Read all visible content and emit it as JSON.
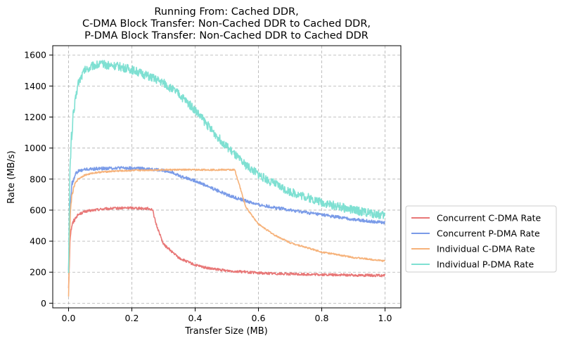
{
  "chart_data": {
    "type": "line",
    "title_lines": [
      "Running From: Cached DDR,",
      "C-DMA Block Transfer: Non-Cached DDR to Cached DDR,",
      "P-DMA Block Transfer: Non-Cached DDR to Cached DDR"
    ],
    "xlabel": "Transfer Size (MB)",
    "ylabel": "Rate (MB/s)",
    "xlim": [
      -0.05,
      1.05
    ],
    "ylim": [
      -30,
      1660
    ],
    "xticks": [
      0.0,
      0.2,
      0.4,
      0.6,
      0.8,
      1.0
    ],
    "xtick_labels": [
      "0.0",
      "0.2",
      "0.4",
      "0.6",
      "0.8",
      "1.0"
    ],
    "yticks": [
      0,
      200,
      400,
      600,
      800,
      1000,
      1200,
      1400,
      1600
    ],
    "ytick_labels": [
      "0",
      "200",
      "400",
      "600",
      "800",
      "1000",
      "1200",
      "1400",
      "1600"
    ],
    "grid": true,
    "legend_position": "outside-right-bottom",
    "series": [
      {
        "name": "Concurrent C-DMA Rate",
        "color": "#e87777",
        "x": [
          0.0,
          0.005,
          0.01,
          0.02,
          0.03,
          0.05,
          0.08,
          0.1,
          0.15,
          0.2,
          0.25,
          0.265,
          0.275,
          0.3,
          0.35,
          0.4,
          0.45,
          0.5,
          0.6,
          0.7,
          0.8,
          0.9,
          1.0
        ],
        "values": [
          100,
          430,
          500,
          545,
          570,
          590,
          600,
          606,
          612,
          615,
          610,
          605,
          520,
          380,
          290,
          245,
          222,
          210,
          195,
          188,
          184,
          181,
          178
        ]
      },
      {
        "name": "Concurrent P-DMA Rate",
        "color": "#7a9be8",
        "x": [
          0.0,
          0.005,
          0.01,
          0.02,
          0.03,
          0.05,
          0.1,
          0.15,
          0.2,
          0.25,
          0.3,
          0.33,
          0.35,
          0.4,
          0.45,
          0.5,
          0.55,
          0.6,
          0.7,
          0.8,
          0.9,
          1.0
        ],
        "values": [
          220,
          620,
          760,
          830,
          850,
          862,
          868,
          872,
          870,
          866,
          855,
          845,
          820,
          790,
          745,
          700,
          665,
          635,
          600,
          570,
          540,
          518
        ]
      },
      {
        "name": "Individual C-DMA Rate",
        "color": "#f6b27a",
        "x": [
          0.0,
          0.005,
          0.01,
          0.02,
          0.03,
          0.05,
          0.08,
          0.1,
          0.15,
          0.2,
          0.25,
          0.3,
          0.35,
          0.4,
          0.45,
          0.5,
          0.525,
          0.54,
          0.56,
          0.6,
          0.65,
          0.7,
          0.8,
          0.9,
          1.0
        ],
        "values": [
          50,
          560,
          690,
          770,
          800,
          825,
          840,
          845,
          852,
          855,
          858,
          860,
          860,
          860,
          860,
          860,
          860,
          760,
          620,
          510,
          440,
          390,
          330,
          295,
          272
        ]
      },
      {
        "name": "Individual P-DMA Rate",
        "color": "#7fe0d2",
        "x": [
          0.0,
          0.005,
          0.01,
          0.02,
          0.03,
          0.05,
          0.08,
          0.1,
          0.15,
          0.2,
          0.25,
          0.3,
          0.35,
          0.4,
          0.45,
          0.5,
          0.55,
          0.6,
          0.65,
          0.7,
          0.8,
          0.9,
          1.0
        ],
        "values": [
          250,
          900,
          1100,
          1290,
          1420,
          1500,
          1535,
          1540,
          1530,
          1505,
          1465,
          1420,
          1345,
          1245,
          1120,
          1010,
          905,
          830,
          770,
          720,
          650,
          600,
          565
        ]
      }
    ]
  }
}
